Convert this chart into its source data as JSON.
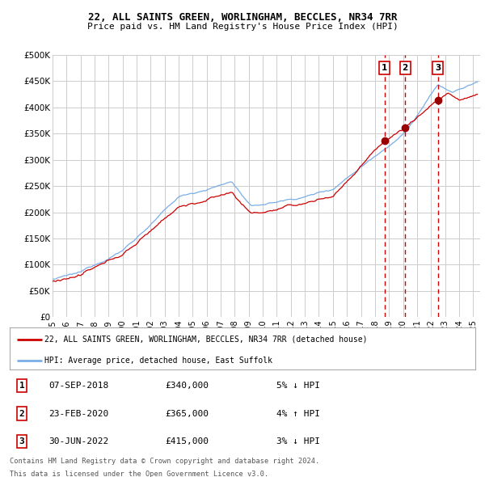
{
  "title1": "22, ALL SAINTS GREEN, WORLINGHAM, BECCLES, NR34 7RR",
  "title2": "Price paid vs. HM Land Registry's House Price Index (HPI)",
  "ylabel_ticks": [
    "£0",
    "£50K",
    "£100K",
    "£150K",
    "£200K",
    "£250K",
    "£300K",
    "£350K",
    "£400K",
    "£450K",
    "£500K"
  ],
  "ytick_values": [
    0,
    50000,
    100000,
    150000,
    200000,
    250000,
    300000,
    350000,
    400000,
    450000,
    500000
  ],
  "xlim_start": 1995.0,
  "xlim_end": 2025.5,
  "ylim": [
    0,
    500000
  ],
  "sale_events": [
    {
      "label": "1",
      "date_str": "07-SEP-2018",
      "price": 340000,
      "pct": "5%",
      "direction": "↓",
      "x": 2018.69
    },
    {
      "label": "2",
      "date_str": "23-FEB-2020",
      "price": 365000,
      "pct": "4%",
      "direction": "↑",
      "x": 2020.15
    },
    {
      "label": "3",
      "date_str": "30-JUN-2022",
      "price": 415000,
      "pct": "3%",
      "direction": "↓",
      "x": 2022.5
    }
  ],
  "legend_line1": "22, ALL SAINTS GREEN, WORLINGHAM, BECCLES, NR34 7RR (detached house)",
  "legend_line2": "HPI: Average price, detached house, East Suffolk",
  "footer1": "Contains HM Land Registry data © Crown copyright and database right 2024.",
  "footer2": "This data is licensed under the Open Government Licence v3.0.",
  "hpi_color": "#7aaee8",
  "price_color": "#cc0000",
  "vline_color": "#cc0000",
  "background_color": "#ffffff",
  "grid_color": "#cccccc",
  "sale_dot_color": "#990000"
}
